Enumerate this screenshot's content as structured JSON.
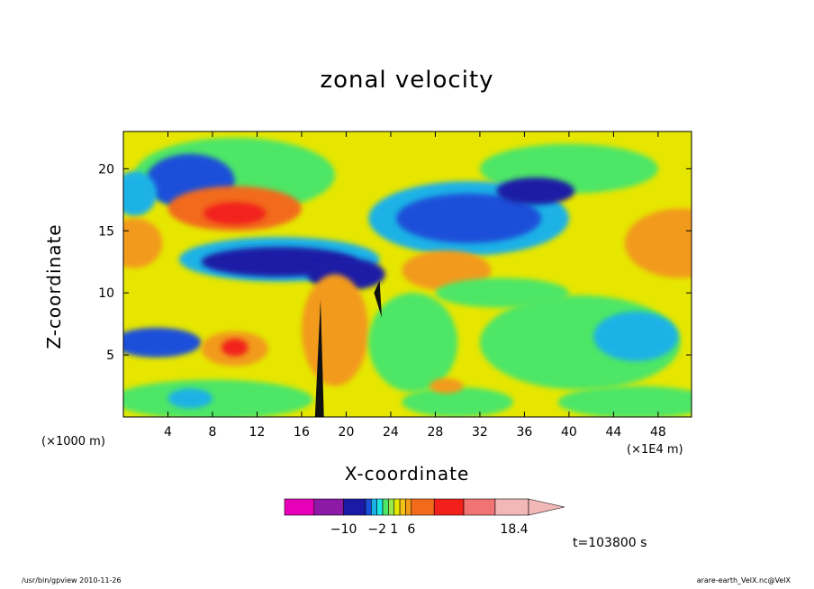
{
  "chart_data": {
    "type": "heatmap",
    "title": "zonal velocity",
    "xlabel": "X-coordinate",
    "ylabel": "Z-coordinate",
    "x_unit_label": "(×1000 m)",
    "x_scale_label": "(×1E4 m)",
    "x_ticks": [
      4,
      8,
      12,
      16,
      20,
      24,
      28,
      32,
      36,
      40,
      44,
      48
    ],
    "y_ticks": [
      5,
      10,
      15,
      20
    ],
    "xlim": [
      0,
      51
    ],
    "ylim": [
      0,
      23
    ],
    "colorbar": {
      "colors": [
        "#e600b8",
        "#8c1aa6",
        "#1a1aa6",
        "#1a50d9",
        "#1ab2e6",
        "#1ae6e6",
        "#4de666",
        "#99e64d",
        "#e6e600",
        "#f2c21a",
        "#f29a1a",
        "#f26b1a",
        "#f2201a",
        "#f27373",
        "#f2b8b8"
      ],
      "labels": [
        "−10",
        "−2",
        "1",
        "6",
        "18.4"
      ]
    },
    "time_label": "t=103800 s",
    "footer_left": "/usr/bin/gpview   2010-11-26",
    "footer_right": "arare-earth_VelX.nc@VelX"
  }
}
